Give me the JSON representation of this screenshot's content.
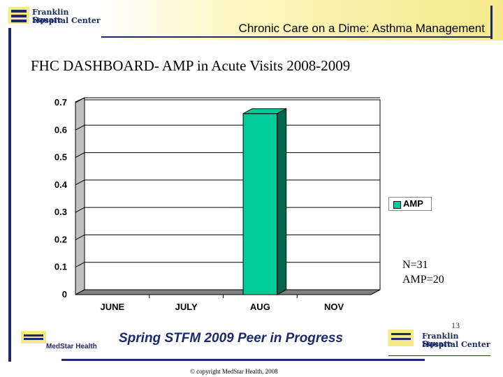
{
  "header": {
    "logo_line1": "Franklin Square",
    "logo_line2": "Hospital Center",
    "title": "Chronic Care on a Dime: Asthma Management"
  },
  "slide": {
    "title": "FHC DASHBOARD- AMP in Acute Visits 2008-2009",
    "note_n": "N=31",
    "note_amp": "AMP=20",
    "page_number": "13",
    "footer_title": "Spring STFM 2009 Peer in Progress",
    "copyright": "© copyright MedStar Health, 2008",
    "medstar_label": "MedStar Health",
    "footer_logo_line1": "Franklin Square",
    "footer_logo_line2": "Hospital Center"
  },
  "colors": {
    "brand_navy": "#1c2a6b",
    "bar_fill": "#00cc99",
    "bar_dark": "#00664d",
    "plot_back": "#d9d9d9"
  },
  "chart_data": {
    "type": "bar",
    "title": "",
    "categories": [
      "JUNE",
      "JULY",
      "AUG",
      "NOV"
    ],
    "series": [
      {
        "name": "AMP",
        "values": [
          0,
          0,
          0.66,
          0
        ]
      }
    ],
    "ylim": [
      0,
      0.7
    ],
    "yticks": [
      "0",
      "0.1",
      "0.2",
      "0.3",
      "0.4",
      "0.5",
      "0.6",
      "0.7"
    ],
    "xlabel": "",
    "ylabel": "",
    "grid": true,
    "legend": "right"
  }
}
